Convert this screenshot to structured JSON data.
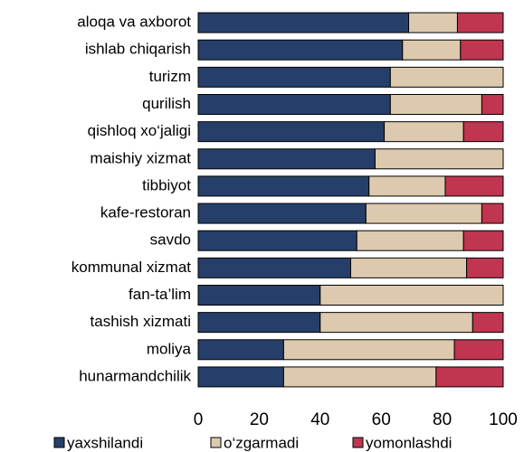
{
  "chart_data": {
    "type": "stacked-barh",
    "categories": [
      "aloqa va axborot",
      "ishlab chiqarish",
      "turizm",
      "qurilish",
      "qishloq xo‘jaligi",
      "maishiy xizmat",
      "tibbiyot",
      "kafe-restoran",
      "savdo",
      "kommunal xizmat",
      "fan-ta’lim",
      "tashish xizmati",
      "moliya",
      "hunarmandchilik"
    ],
    "series": [
      {
        "name": "yaxshilandi",
        "color": "#263f6a",
        "values": [
          69,
          67,
          63,
          63,
          61,
          58,
          56,
          55,
          52,
          50,
          40,
          40,
          28,
          28
        ]
      },
      {
        "name": "o‘zgarmadi",
        "color": "#ddc9ae",
        "values": [
          16,
          19,
          37,
          30,
          26,
          42,
          25,
          38,
          35,
          38,
          60,
          50,
          56,
          50
        ]
      },
      {
        "name": "yomonlashdi",
        "color": "#c0354f",
        "values": [
          15,
          14,
          0,
          7,
          13,
          0,
          19,
          7,
          13,
          12,
          0,
          10,
          16,
          22
        ]
      }
    ],
    "xlim": [
      0,
      100
    ],
    "xticks": [
      0,
      20,
      40,
      60,
      80,
      100
    ],
    "grid": false,
    "legend": "bottom"
  }
}
